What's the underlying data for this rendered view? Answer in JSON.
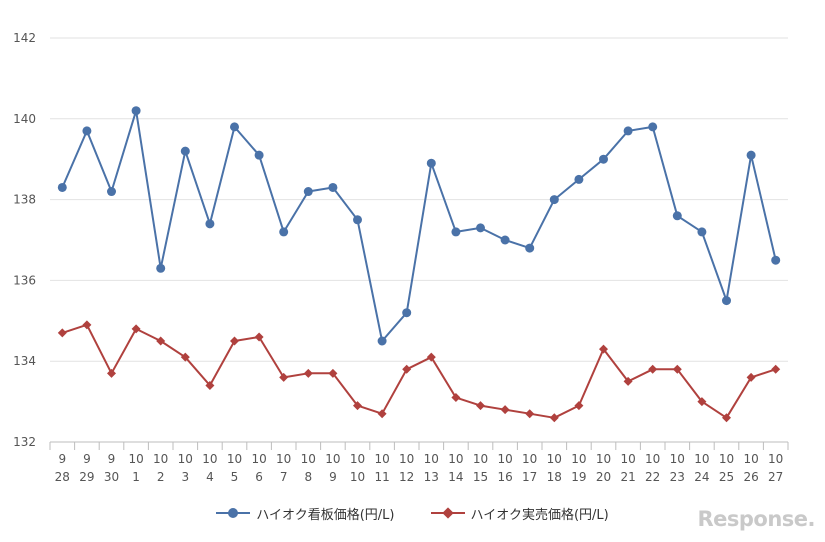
{
  "chart_data": {
    "type": "line",
    "title": "",
    "xlabel": "",
    "ylabel": "",
    "ylim": [
      132,
      142
    ],
    "yticks": [
      132,
      134,
      136,
      138,
      140,
      142
    ],
    "grid": true,
    "legend_position": "bottom-center",
    "categories": [
      {
        "month": "9",
        "day": "28"
      },
      {
        "month": "9",
        "day": "29"
      },
      {
        "month": "9",
        "day": "30"
      },
      {
        "month": "10",
        "day": "1"
      },
      {
        "month": "10",
        "day": "2"
      },
      {
        "month": "10",
        "day": "3"
      },
      {
        "month": "10",
        "day": "4"
      },
      {
        "month": "10",
        "day": "5"
      },
      {
        "month": "10",
        "day": "6"
      },
      {
        "month": "10",
        "day": "7"
      },
      {
        "month": "10",
        "day": "8"
      },
      {
        "month": "10",
        "day": "9"
      },
      {
        "month": "10",
        "day": "10"
      },
      {
        "month": "10",
        "day": "11"
      },
      {
        "month": "10",
        "day": "12"
      },
      {
        "month": "10",
        "day": "13"
      },
      {
        "month": "10",
        "day": "14"
      },
      {
        "month": "10",
        "day": "15"
      },
      {
        "month": "10",
        "day": "16"
      },
      {
        "month": "10",
        "day": "17"
      },
      {
        "month": "10",
        "day": "18"
      },
      {
        "month": "10",
        "day": "19"
      },
      {
        "month": "10",
        "day": "20"
      },
      {
        "month": "10",
        "day": "21"
      },
      {
        "month": "10",
        "day": "22"
      },
      {
        "month": "10",
        "day": "23"
      },
      {
        "month": "10",
        "day": "24"
      },
      {
        "month": "10",
        "day": "25"
      },
      {
        "month": "10",
        "day": "26"
      },
      {
        "month": "10",
        "day": "27"
      }
    ],
    "series": [
      {
        "name": "ハイオク看板価格(円/L)",
        "color": "#4a72a8",
        "marker": "circle",
        "values": [
          138.3,
          139.7,
          138.2,
          140.2,
          136.3,
          139.2,
          137.4,
          139.8,
          139.1,
          137.2,
          138.2,
          138.3,
          137.5,
          134.5,
          135.2,
          138.9,
          137.2,
          137.3,
          137.0,
          136.8,
          138.0,
          138.5,
          139.0,
          139.7,
          139.8,
          137.6,
          137.2,
          135.5,
          139.1,
          136.5
        ]
      },
      {
        "name": "ハイオク実売価格(円/L)",
        "color": "#b0413e",
        "marker": "diamond",
        "values": [
          134.7,
          134.9,
          133.7,
          134.8,
          134.5,
          134.1,
          133.4,
          134.5,
          134.6,
          133.6,
          133.7,
          133.7,
          132.9,
          132.7,
          133.8,
          134.1,
          133.1,
          132.9,
          132.8,
          132.7,
          132.6,
          132.9,
          134.3,
          133.5,
          133.8,
          133.8,
          133.0,
          132.6,
          133.6,
          133.8
        ]
      }
    ]
  },
  "watermark": {
    "text": "Response."
  }
}
